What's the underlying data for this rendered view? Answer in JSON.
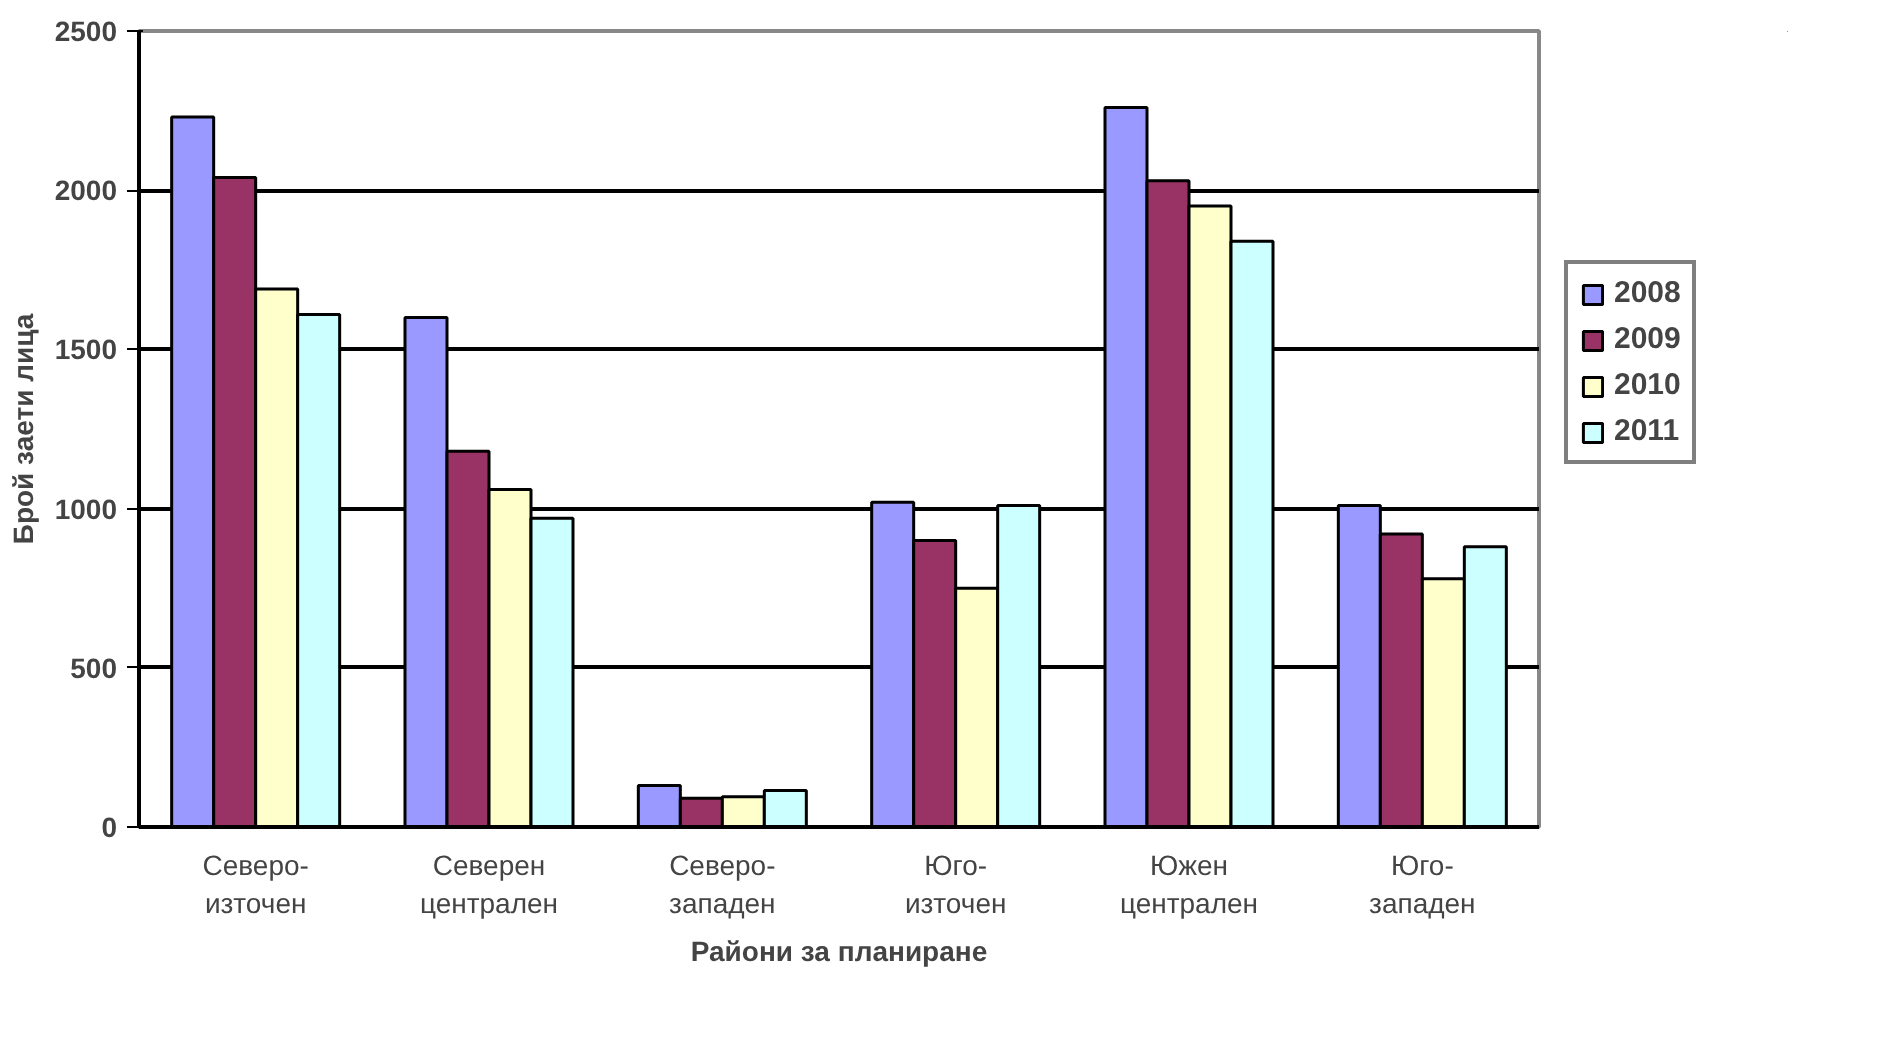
{
  "chart_data": {
    "type": "bar",
    "xlabel": "Райони за планиране",
    "ylabel": "Брой заети лица",
    "categories": [
      "Северо-източен",
      "Северен централен",
      "Северо-западен",
      "Юго-източен",
      "Южен централен",
      "Юго-западен"
    ],
    "series": [
      {
        "name": "2008",
        "color": "#9999ff",
        "values": [
          2230,
          1600,
          130,
          1020,
          2260,
          1010
        ]
      },
      {
        "name": "2009",
        "color": "#993366",
        "values": [
          2040,
          1180,
          90,
          900,
          2030,
          920
        ]
      },
      {
        "name": "2010",
        "color": "#ffffcc",
        "values": [
          1690,
          1060,
          95,
          750,
          1950,
          780
        ]
      },
      {
        "name": "2011",
        "color": "#ccffff",
        "values": [
          1610,
          970,
          115,
          1010,
          1840,
          880
        ]
      }
    ],
    "ylim": [
      0,
      2500
    ],
    "yticks": [
      0,
      500,
      1000,
      1500,
      2000,
      2500
    ],
    "grid": "y",
    "legend": "right"
  }
}
